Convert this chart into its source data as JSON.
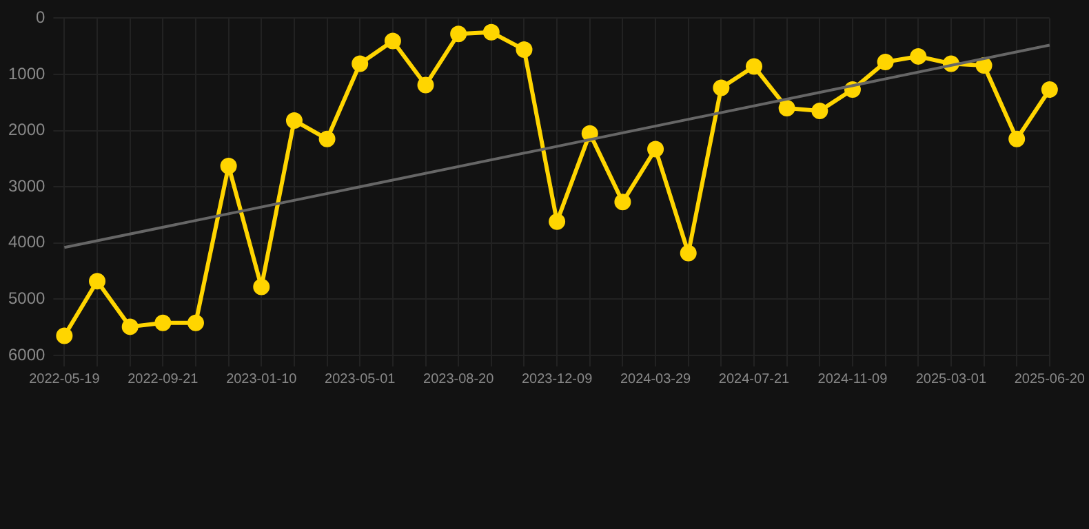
{
  "chart_data": {
    "type": "line",
    "categories": [
      "2022-05-19",
      null,
      null,
      "2022-09-21",
      null,
      null,
      "2023-01-10",
      null,
      null,
      "2023-05-01",
      null,
      null,
      "2023-08-20",
      null,
      null,
      "2023-12-09",
      null,
      null,
      "2024-03-29",
      null,
      null,
      "2024-07-21",
      null,
      null,
      "2024-11-09",
      null,
      null,
      "2025-03-01",
      null,
      null,
      "2025-06-20"
    ],
    "series": [
      {
        "color": "#ffd500",
        "marker": "circle",
        "values": [
          5650,
          4680,
          5490,
          5420,
          5420,
          2630,
          4780,
          1820,
          2150,
          810,
          405,
          1190,
          280,
          250,
          560,
          3620,
          2050,
          3270,
          2330,
          4180,
          1240,
          860,
          1600,
          1650,
          1270,
          780,
          680,
          810,
          840,
          2150,
          1270
        ]
      },
      {
        "color": "#666666",
        "marker": "none",
        "values": [
          4080,
          null,
          null,
          null,
          null,
          null,
          null,
          null,
          null,
          null,
          null,
          null,
          null,
          null,
          null,
          null,
          null,
          null,
          null,
          null,
          null,
          null,
          null,
          null,
          null,
          null,
          null,
          null,
          null,
          null,
          480
        ]
      }
    ],
    "ylim": [
      6000,
      0
    ],
    "yticks": [
      0,
      1000,
      2000,
      3000,
      4000,
      5000,
      6000
    ],
    "grid": true,
    "legend": false
  }
}
